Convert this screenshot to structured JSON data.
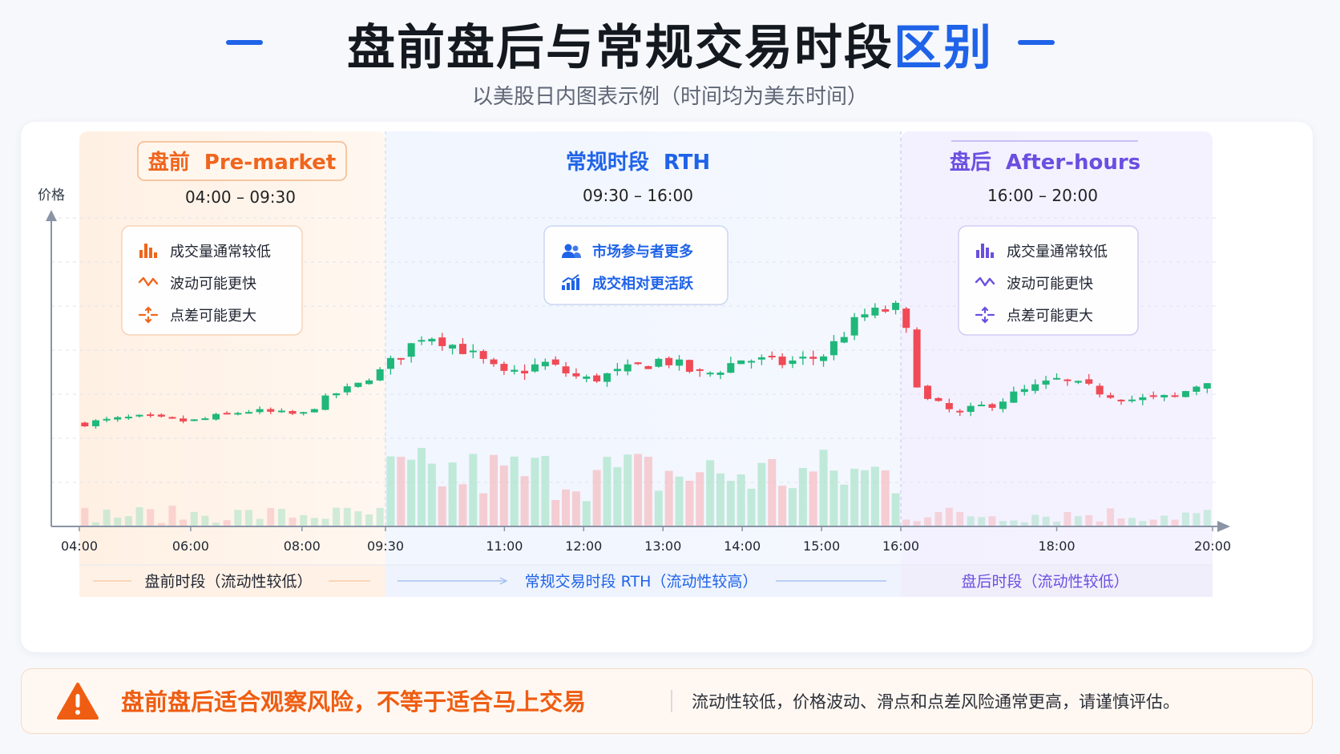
{
  "header": {
    "title_main": "盘前盘后与常规交易时段",
    "title_accent": "区别",
    "subtitle": "以美股日内图表示例（时间均为美东时间）"
  },
  "colors": {
    "accent_blue": "#1f63e8",
    "premarket_orange": "#f0651d",
    "afterhours_purple": "#6a4fe0",
    "up_green": "#1fb77a",
    "down_red": "#ef4a56",
    "warning_orange": "#ef5d12"
  },
  "sessions": {
    "premarket": {
      "title_cn": "盘前",
      "title_en": "Pre-market",
      "time": "04:00 – 09:30",
      "features": [
        {
          "icon": "bar-chart-icon",
          "text": "成交量通常较低"
        },
        {
          "icon": "wave-icon",
          "text": "波动可能更快"
        },
        {
          "icon": "spread-arrows-icon",
          "text": "点差可能更大"
        }
      ],
      "footer": "盘前时段（流动性较低）"
    },
    "rth": {
      "title_cn": "常规时段",
      "title_en": "RTH",
      "time": "09:30 – 16:00",
      "features": [
        {
          "icon": "users-icon",
          "text": "市场参与者更多"
        },
        {
          "icon": "trend-up-icon",
          "text": "成交相对更活跃"
        }
      ],
      "footer": "常规交易时段 RTH（流动性较高）"
    },
    "afterhours": {
      "title_cn": "盘后",
      "title_en": "After-hours",
      "time": "16:00 – 20:00",
      "features": [
        {
          "icon": "bar-chart-icon",
          "text": "成交量通常较低"
        },
        {
          "icon": "wave-icon",
          "text": "波动可能更快"
        },
        {
          "icon": "spread-arrows-icon",
          "text": "点差可能更大"
        }
      ],
      "footer": "盘后时段（流动性较低）"
    }
  },
  "chart_data": {
    "type": "candlestick",
    "ylabel": "价格",
    "x_ticks": [
      "04:00",
      "06:00",
      "08:00",
      "09:30",
      "11:00",
      "12:00",
      "13:00",
      "14:00",
      "15:00",
      "16:00",
      "18:00",
      "20:00"
    ],
    "session_bounds": [
      "04:00",
      "09:30",
      "16:00",
      "20:00"
    ],
    "y_axis_values_shown": false,
    "close_path": [
      [
        "04:00",
        0.16
      ],
      [
        "05:00",
        0.19
      ],
      [
        "06:00",
        0.17
      ],
      [
        "07:00",
        0.22
      ],
      [
        "08:00",
        0.2
      ],
      [
        "08:30",
        0.29
      ],
      [
        "09:00",
        0.34
      ],
      [
        "09:30",
        0.42
      ],
      [
        "10:00",
        0.58
      ],
      [
        "10:30",
        0.5
      ],
      [
        "11:00",
        0.38
      ],
      [
        "11:30",
        0.44
      ],
      [
        "12:00",
        0.36
      ],
      [
        "12:30",
        0.4
      ],
      [
        "13:00",
        0.46
      ],
      [
        "13:30",
        0.38
      ],
      [
        "14:00",
        0.46
      ],
      [
        "14:30",
        0.44
      ],
      [
        "15:00",
        0.47
      ],
      [
        "15:30",
        0.66
      ],
      [
        "16:00",
        0.7
      ],
      [
        "16:15",
        0.28
      ],
      [
        "16:45",
        0.2
      ],
      [
        "17:30",
        0.3
      ],
      [
        "18:00",
        0.36
      ],
      [
        "19:00",
        0.27
      ],
      [
        "19:30",
        0.28
      ],
      [
        "20:00",
        0.38
      ]
    ],
    "volume_relative": {
      "premarket": "low",
      "rth": "high",
      "afterhours": "low"
    }
  },
  "warning": {
    "title": "盘前盘后适合观察风险，不等于适合马上交易",
    "text": "流动性较低，价格波动、滑点和点差风险通常更高，请谨慎评估。"
  }
}
